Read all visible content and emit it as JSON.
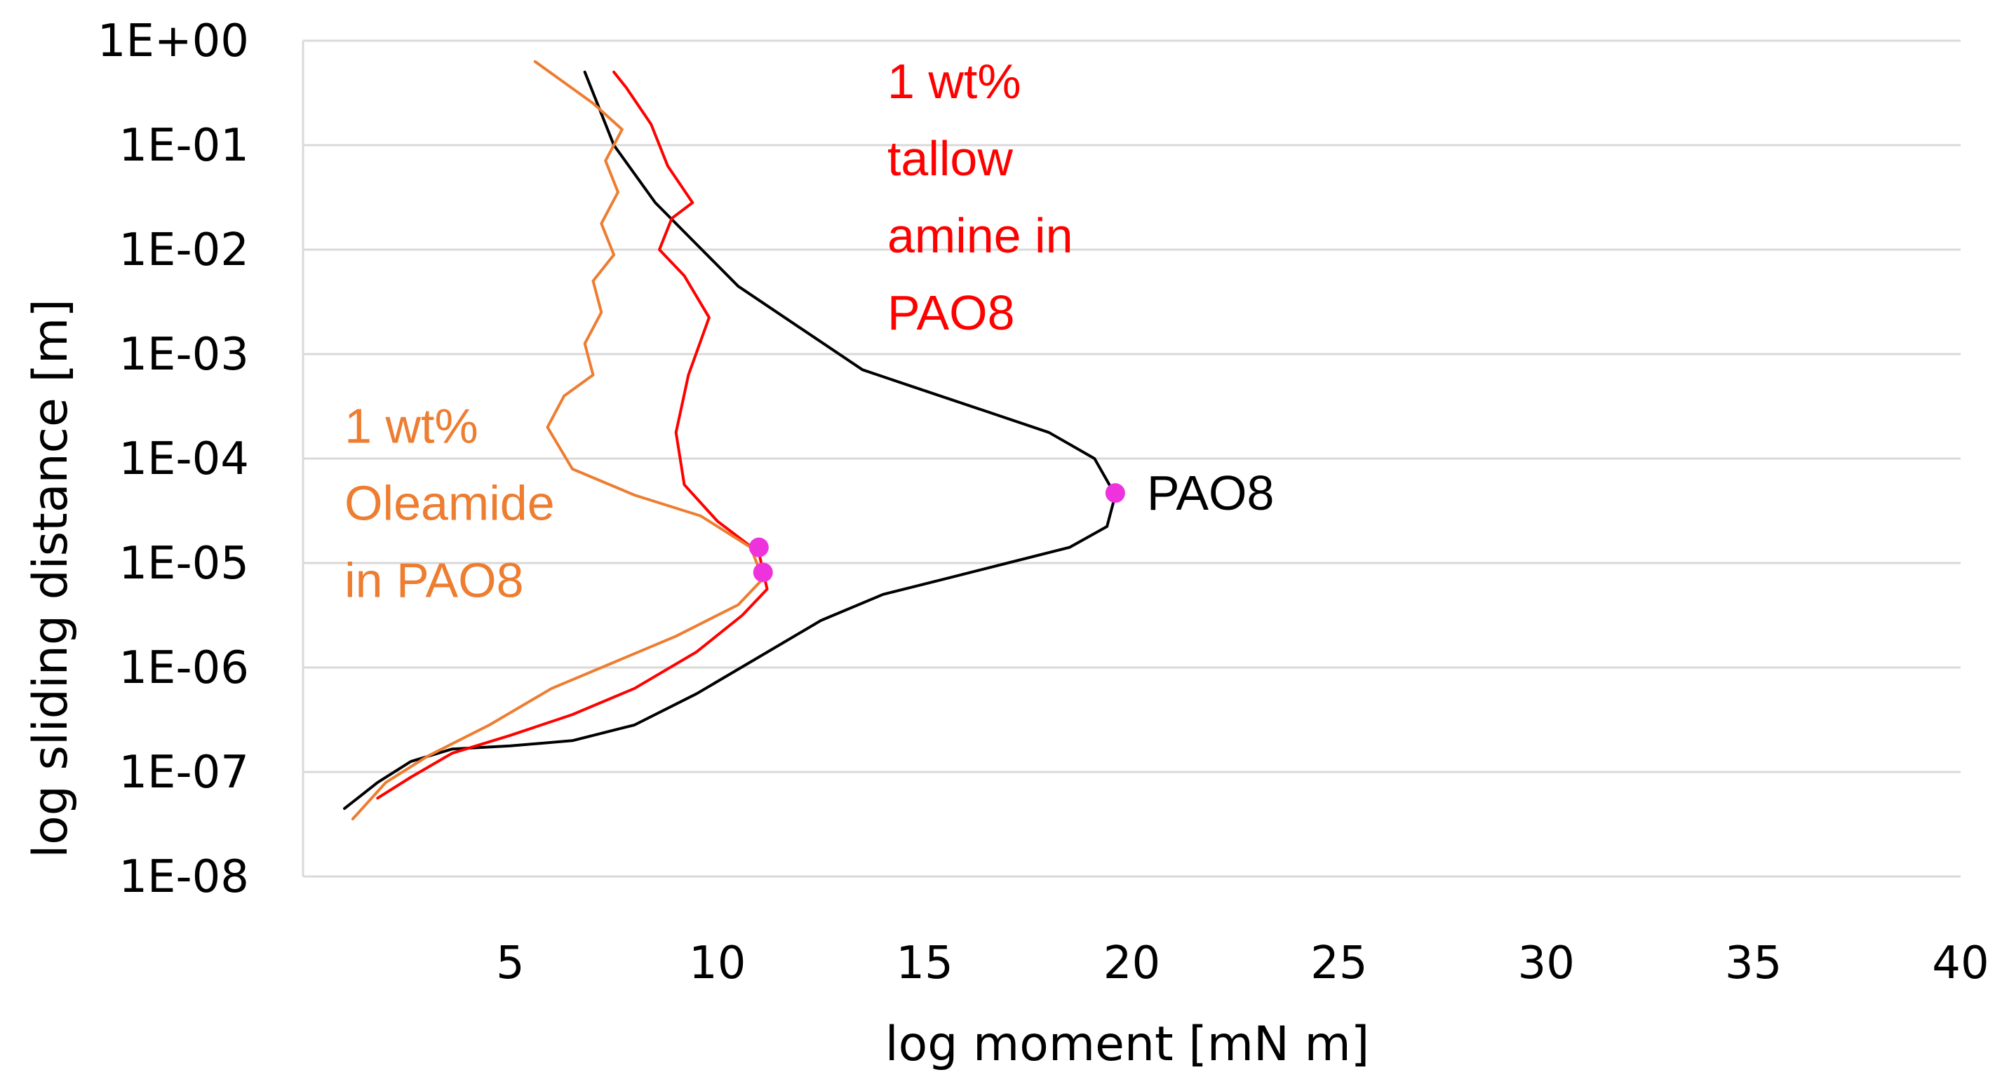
{
  "chart_data": {
    "type": "line",
    "title": "",
    "xlabel": "log moment [mN m]",
    "ylabel": "log sliding distance [m]",
    "xlim": [
      0,
      40
    ],
    "ylim_log10": [
      -8,
      0
    ],
    "x_ticks": [
      "5",
      "10",
      "15",
      "20",
      "25",
      "30",
      "35",
      "40"
    ],
    "y_ticks": [
      "1E+00",
      "1E-01",
      "1E-02",
      "1E-03",
      "1E-04",
      "1E-05",
      "1E-06",
      "1E-07",
      "1E-08"
    ],
    "grid": "horizontal",
    "series": [
      {
        "name": "PAO8",
        "color": "#000000",
        "points": [
          [
            1.0,
            -7.35
          ],
          [
            1.8,
            -7.1
          ],
          [
            2.6,
            -6.9
          ],
          [
            3.6,
            -6.78
          ],
          [
            5.0,
            -6.75
          ],
          [
            6.5,
            -6.7
          ],
          [
            8.0,
            -6.55
          ],
          [
            9.5,
            -6.25
          ],
          [
            11.0,
            -5.9
          ],
          [
            12.5,
            -5.55
          ],
          [
            14.0,
            -5.3
          ],
          [
            15.5,
            -5.15
          ],
          [
            17.0,
            -5.0
          ],
          [
            18.5,
            -4.85
          ],
          [
            19.4,
            -4.65
          ],
          [
            19.6,
            -4.35
          ],
          [
            19.1,
            -4.0
          ],
          [
            18.0,
            -3.75
          ],
          [
            16.5,
            -3.55
          ],
          [
            15.0,
            -3.35
          ],
          [
            13.5,
            -3.15
          ],
          [
            12.0,
            -2.75
          ],
          [
            10.5,
            -2.35
          ],
          [
            9.5,
            -1.95
          ],
          [
            8.5,
            -1.55
          ],
          [
            7.5,
            -1.0
          ],
          [
            6.8,
            -0.3
          ]
        ]
      },
      {
        "name": "1 wt% tallow amine in PAO8",
        "color": "#ff0000",
        "points": [
          [
            1.8,
            -7.25
          ],
          [
            2.6,
            -7.05
          ],
          [
            3.6,
            -6.82
          ],
          [
            5.0,
            -6.65
          ],
          [
            6.5,
            -6.45
          ],
          [
            8.0,
            -6.2
          ],
          [
            9.5,
            -5.85
          ],
          [
            10.6,
            -5.5
          ],
          [
            11.2,
            -5.25
          ],
          [
            11.0,
            -4.9
          ],
          [
            10.0,
            -4.6
          ],
          [
            9.2,
            -4.25
          ],
          [
            9.0,
            -3.75
          ],
          [
            9.3,
            -3.2
          ],
          [
            9.8,
            -2.65
          ],
          [
            9.2,
            -2.25
          ],
          [
            8.6,
            -2.0
          ],
          [
            8.9,
            -1.7
          ],
          [
            9.4,
            -1.55
          ],
          [
            8.8,
            -1.2
          ],
          [
            8.4,
            -0.8
          ],
          [
            7.8,
            -0.45
          ],
          [
            7.5,
            -0.3
          ]
        ]
      },
      {
        "name": "1 wt% Oleamide in PAO8",
        "color": "#ed7d31",
        "points": [
          [
            1.2,
            -7.45
          ],
          [
            2.0,
            -7.1
          ],
          [
            3.0,
            -6.85
          ],
          [
            4.5,
            -6.55
          ],
          [
            6.0,
            -6.2
          ],
          [
            7.5,
            -5.95
          ],
          [
            9.0,
            -5.7
          ],
          [
            10.5,
            -5.4
          ],
          [
            11.1,
            -5.15
          ],
          [
            10.8,
            -4.85
          ],
          [
            9.6,
            -4.55
          ],
          [
            8.0,
            -4.35
          ],
          [
            6.5,
            -4.1
          ],
          [
            5.9,
            -3.7
          ],
          [
            6.3,
            -3.4
          ],
          [
            7.0,
            -3.2
          ],
          [
            6.8,
            -2.9
          ],
          [
            7.2,
            -2.6
          ],
          [
            7.0,
            -2.3
          ],
          [
            7.5,
            -2.05
          ],
          [
            7.2,
            -1.75
          ],
          [
            7.6,
            -1.45
          ],
          [
            7.3,
            -1.15
          ],
          [
            7.7,
            -0.85
          ],
          [
            7.0,
            -0.6
          ],
          [
            6.3,
            -0.4
          ],
          [
            5.6,
            -0.2
          ]
        ]
      }
    ],
    "markers": [
      {
        "label": "PAO8",
        "x": 19.6,
        "y_log10": -4.33,
        "color": "#ee33dd"
      },
      {
        "x": 11.0,
        "y_log10": -4.85,
        "color": "#ee33dd"
      },
      {
        "x": 11.1,
        "y_log10": -5.09,
        "color": "#ee33dd"
      }
    ],
    "annotations": [
      {
        "lines": [
          "1 wt%",
          "tallow",
          "amine in",
          "PAO8"
        ],
        "color": "#ff0000",
        "x": 14.1,
        "y_log10": -0.55
      },
      {
        "lines": [
          "1 wt%",
          "Oleamide",
          "in PAO8"
        ],
        "color": "#ed7d31",
        "x": 1.0,
        "y_log10": -3.85
      }
    ]
  }
}
